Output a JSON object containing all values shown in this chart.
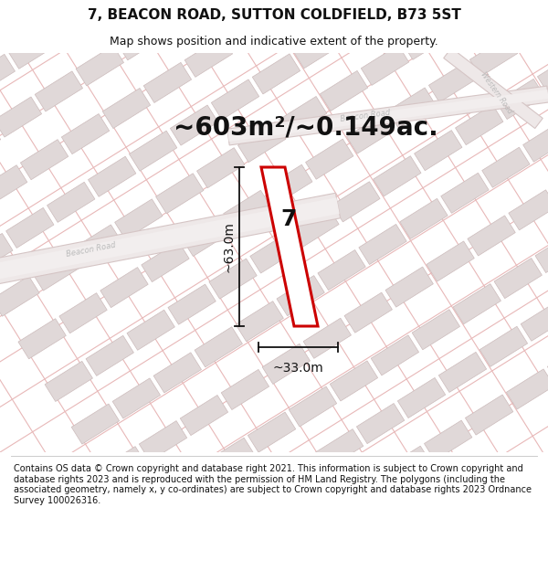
{
  "title": "7, BEACON ROAD, SUTTON COLDFIELD, B73 5ST",
  "subtitle": "Map shows position and indicative extent of the property.",
  "area_text": "~603m²/~0.149ac.",
  "number_label": "7",
  "dim_width": "~33.0m",
  "dim_height": "~63.0m",
  "footer": "Contains OS data © Crown copyright and database right 2021. This information is subject to Crown copyright and database rights 2023 and is reproduced with the permission of HM Land Registry. The polygons (including the associated geometry, namely x, y co-ordinates) are subject to Crown copyright and database rights 2023 Ordnance Survey 100026316.",
  "map_bg": "#f7f4f4",
  "street_line_color": "#e8b8b8",
  "building_fill": "#e0d8d8",
  "building_edge": "#d0c0c0",
  "road_fill": "#e8d8d8",
  "road_center_fill": "#ede5e5",
  "road_label_color": "#bbbbbb",
  "subject_fill": "#ffffff",
  "subject_edge": "#cc0000",
  "dim_color": "#111111",
  "area_color": "#111111",
  "title_fontsize": 11,
  "subtitle_fontsize": 9,
  "area_fontsize": 20,
  "number_fontsize": 18,
  "dim_fontsize": 10,
  "footer_fontsize": 7,
  "title_color": "#111111",
  "subtitle_color": "#111111"
}
